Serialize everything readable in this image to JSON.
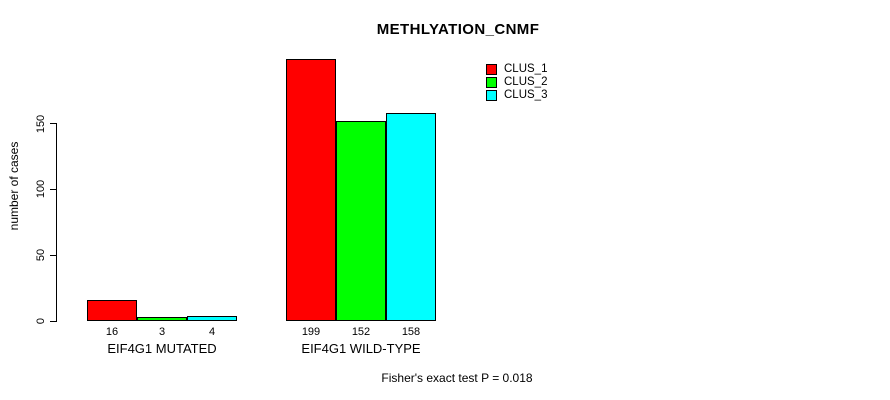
{
  "chart_data": {
    "type": "bar",
    "title": "METHLYATION_CNMF",
    "ylabel": "number of cases",
    "xlabel": "",
    "categories": [
      "EIF4G1 MUTATED",
      "EIF4G1 WILD-TYPE"
    ],
    "series": [
      {
        "name": "CLUS_1",
        "color": "#ff0000",
        "values": [
          16,
          199
        ]
      },
      {
        "name": "CLUS_2",
        "color": "#00ff00",
        "values": [
          3,
          152
        ]
      },
      {
        "name": "CLUS_3",
        "color": "#00ffff",
        "values": [
          4,
          158
        ]
      }
    ],
    "bar_value_labels": [
      [
        "16",
        "3",
        "4"
      ],
      [
        "199",
        "152",
        "158"
      ]
    ],
    "yticks": [
      "0",
      "50",
      "100",
      "150"
    ],
    "ylim": [
      0,
      205
    ],
    "grid": false,
    "legend_position": "top-right",
    "annotation": "Fisher's exact test P = 0.018"
  }
}
